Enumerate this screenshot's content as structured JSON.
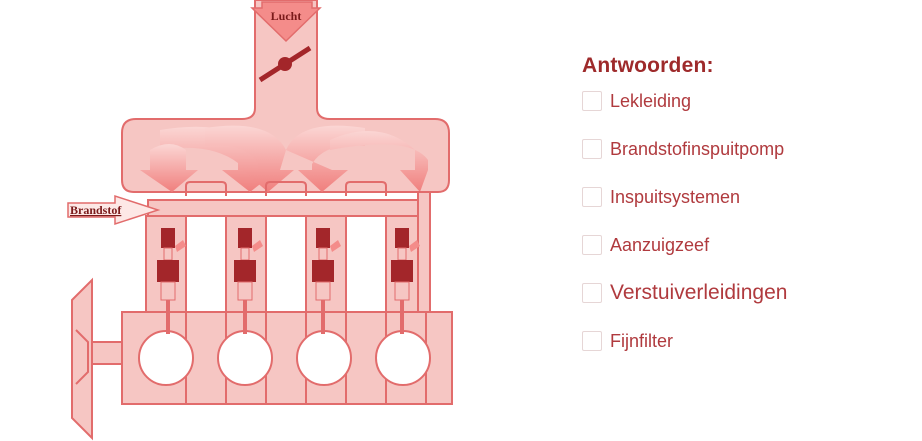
{
  "diagram": {
    "air_label": "Lucht",
    "fuel_label": "Brandstof",
    "colors": {
      "light": "#f6c6c3",
      "outline": "#e26c6c",
      "dark": "#a3262a",
      "arrow": "#f48c8a"
    }
  },
  "answers": {
    "title": "Antwoorden:",
    "options": [
      {
        "label": "Lekleiding",
        "checked": false
      },
      {
        "label": "Brandstofinspuitpomp",
        "checked": false
      },
      {
        "label": "Inspuitsystemen",
        "checked": false
      },
      {
        "label": "Aanzuigzeef",
        "checked": false
      },
      {
        "label": "Verstuiverleidingen",
        "checked": false
      },
      {
        "label": "Fijnfilter",
        "checked": false
      }
    ]
  }
}
